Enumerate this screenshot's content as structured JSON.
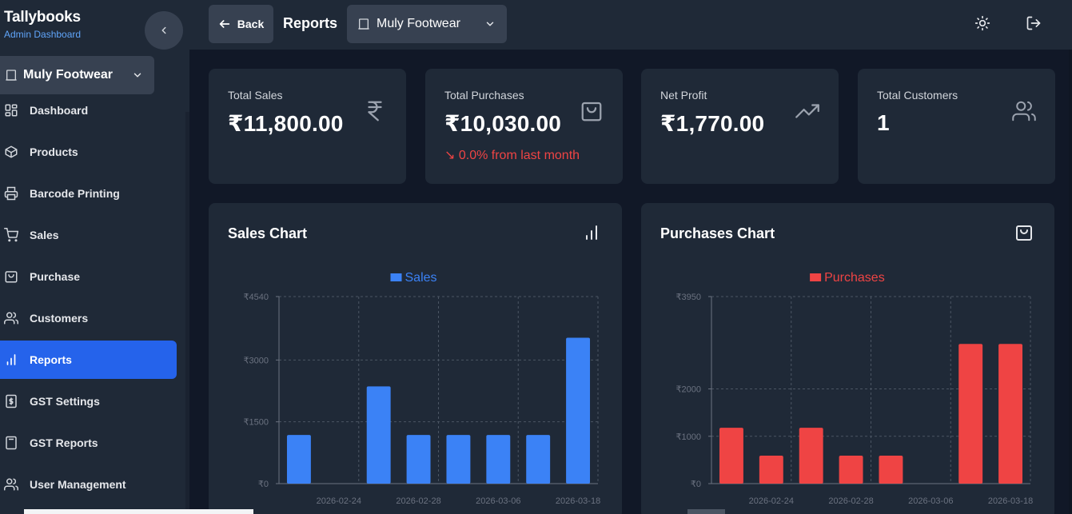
{
  "brand": {
    "title": "Tallybooks",
    "subtitle": "Admin Dashboard"
  },
  "sidebar": {
    "store_label": "Muly Footwear",
    "items": [
      {
        "label": "Dashboard",
        "icon": "dashboard-icon"
      },
      {
        "label": "Products",
        "icon": "box-icon"
      },
      {
        "label": "Barcode Printing",
        "icon": "printer-icon"
      },
      {
        "label": "Sales",
        "icon": "cart-icon"
      },
      {
        "label": "Purchase",
        "icon": "shopping-bag-icon"
      },
      {
        "label": "Customers",
        "icon": "users-icon"
      },
      {
        "label": "Reports",
        "icon": "bar-chart-icon",
        "active": true
      },
      {
        "label": "GST Settings",
        "icon": "dollar-receipt-icon"
      },
      {
        "label": "GST Reports",
        "icon": "calculator-icon"
      },
      {
        "label": "User Management",
        "icon": "users-icon"
      }
    ]
  },
  "topbar": {
    "back_label": "Back",
    "title": "Reports",
    "store_label": "Muly Footwear"
  },
  "stats": [
    {
      "title": "Total Sales",
      "value": "₹11,800.00",
      "icon": "rupee-icon"
    },
    {
      "title": "Total Purchases",
      "value": "₹10,030.00",
      "icon": "shopping-bag-icon",
      "trend": "0.0% from last month"
    },
    {
      "title": "Net Profit",
      "value": "₹1,770.00",
      "icon": "trending-up-icon"
    },
    {
      "title": "Total Customers",
      "value": "1",
      "icon": "users-icon"
    }
  ],
  "colors": {
    "accent": "#2563eb",
    "sales": "#3b82f6",
    "purchases": "#ef4444"
  },
  "chart_data": [
    {
      "panel_title": "Sales Chart",
      "type": "bar",
      "title": "",
      "legend": "Sales",
      "legend_position": "top-center",
      "grid": true,
      "color": "#3b82f6",
      "ylim": [
        0,
        4540
      ],
      "y_ticks": [
        0,
        1500,
        3000,
        4540
      ],
      "y_tick_labels": [
        "₹0",
        "₹1500",
        "₹3000",
        "₹4540"
      ],
      "x_tick_labels": [
        "2026-02-24",
        "2026-02-28",
        "2026-03-06",
        "2026-03-18"
      ],
      "x_tick_positions": [
        1.5,
        3.5,
        5.5,
        7.5
      ],
      "values": [
        1180,
        0,
        2360,
        1180,
        1180,
        1180,
        1180,
        3540
      ]
    },
    {
      "panel_title": "Purchases Chart",
      "type": "bar",
      "title": "",
      "legend": "Purchases",
      "legend_position": "top-center",
      "grid": true,
      "color": "#ef4444",
      "ylim": [
        0,
        3950
      ],
      "y_ticks": [
        0,
        1000,
        2000,
        3950
      ],
      "y_tick_labels": [
        "₹0",
        "₹1000",
        "₹2000",
        "₹3950"
      ],
      "x_tick_labels": [
        "2026-02-24",
        "2026-02-28",
        "2026-03-06",
        "2026-03-18"
      ],
      "x_tick_positions": [
        1.5,
        3.5,
        5.5,
        7.5
      ],
      "values": [
        1180,
        590,
        1180,
        590,
        590,
        0,
        2950,
        2950
      ]
    }
  ]
}
